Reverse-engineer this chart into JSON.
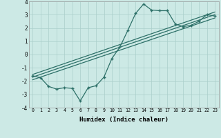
{
  "xlabel": "Humidex (Indice chaleur)",
  "ylabel": "",
  "bg_color": "#cce9e5",
  "line_color": "#2d7068",
  "grid_color": "#aacfcb",
  "xlim": [
    -0.5,
    23.5
  ],
  "ylim": [
    -4,
    4
  ],
  "xticks": [
    0,
    1,
    2,
    3,
    4,
    5,
    6,
    7,
    8,
    9,
    10,
    11,
    12,
    13,
    14,
    15,
    16,
    17,
    18,
    19,
    20,
    21,
    22,
    23
  ],
  "yticks": [
    -4,
    -3,
    -2,
    -1,
    0,
    1,
    2,
    3,
    4
  ],
  "series_wiggly": {
    "x": [
      0,
      1,
      2,
      3,
      4,
      5,
      6,
      7,
      8,
      9,
      10,
      11,
      12,
      13,
      14,
      15,
      16,
      17,
      18,
      19,
      20,
      21,
      22,
      23
    ],
    "y": [
      -1.6,
      -1.75,
      -2.4,
      -2.6,
      -2.5,
      -2.55,
      -3.5,
      -2.5,
      -2.35,
      -1.7,
      -0.3,
      0.55,
      1.8,
      3.1,
      3.8,
      3.35,
      3.3,
      3.3,
      2.3,
      2.1,
      2.2,
      2.5,
      3.0,
      2.9
    ]
  },
  "series_lines": [
    {
      "x": [
        0,
        23
      ],
      "y": [
        -1.9,
        2.75
      ]
    },
    {
      "x": [
        0,
        23
      ],
      "y": [
        -1.7,
        3.0
      ]
    },
    {
      "x": [
        0,
        23
      ],
      "y": [
        -1.5,
        3.2
      ]
    }
  ]
}
